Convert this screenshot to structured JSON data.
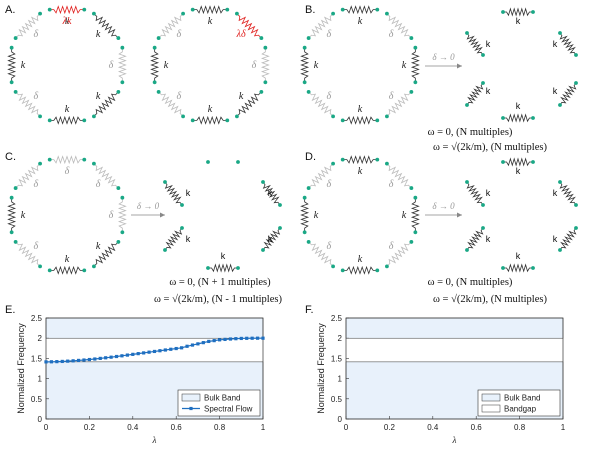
{
  "panels": {
    "A": {
      "label": "A."
    },
    "B": {
      "label": "B."
    },
    "C": {
      "label": "C."
    },
    "D": {
      "label": "D."
    },
    "E": {
      "label": "E."
    },
    "F": {
      "label": "F."
    }
  },
  "symbols": {
    "k": "k",
    "delta": "δ",
    "lambda_k": "λk",
    "lambda_delta": "λδ",
    "K": "k",
    "arrow_label": "δ → 0"
  },
  "notes": {
    "B_zero": "ω = 0,  (N multiples)",
    "B_sqrt": "ω = √(2k/m),  (N multiples)",
    "C_zero": "ω = 0,  (N + 1 multiples)",
    "C_sqrt": "ω = √(2k/m),  (N - 1 multiples)",
    "D_zero": "ω = 0,  (N multiples)",
    "D_sqrt": "ω = √(2k/m),  (N multiples)"
  },
  "colors": {
    "spring_k": "#333333",
    "spring_delta": "#bbbbbb",
    "spring_lambda": "#e0201e",
    "mass": "#1aa886",
    "band_fill": "#e8f1fb",
    "flow": "#1f6fc0",
    "arrow": "#888888"
  },
  "chart_data": [
    {
      "type": "line",
      "panel": "E",
      "xlabel": "λ",
      "ylabel": "Normalized Frequency",
      "xlim": [
        0,
        1
      ],
      "ylim": [
        0,
        2.5
      ],
      "xticks": [
        "0",
        "0.2",
        "0.4",
        "0.6",
        "0.8",
        "1"
      ],
      "yticks": [
        "0",
        "0.5",
        "1",
        "1.5",
        "2",
        "2.5"
      ],
      "bands": [
        [
          0,
          1.414
        ],
        [
          2.0,
          2.5
        ]
      ],
      "series": [
        {
          "name": "Bulk Band",
          "kind": "band"
        },
        {
          "name": "Spectral Flow",
          "kind": "line",
          "x": [
            0,
            0.025,
            0.05,
            0.075,
            0.1,
            0.125,
            0.15,
            0.175,
            0.2,
            0.225,
            0.25,
            0.275,
            0.3,
            0.325,
            0.35,
            0.375,
            0.4,
            0.425,
            0.45,
            0.475,
            0.5,
            0.525,
            0.55,
            0.575,
            0.6,
            0.625,
            0.65,
            0.675,
            0.7,
            0.725,
            0.75,
            0.775,
            0.8,
            0.825,
            0.85,
            0.875,
            0.9,
            0.925,
            0.95,
            0.975,
            1
          ],
          "y": [
            1.414,
            1.416,
            1.42,
            1.425,
            1.432,
            1.44,
            1.45,
            1.46,
            1.472,
            1.485,
            1.5,
            1.515,
            1.53,
            1.547,
            1.564,
            1.582,
            1.6,
            1.618,
            1.636,
            1.654,
            1.672,
            1.69,
            1.708,
            1.726,
            1.744,
            1.762,
            1.8,
            1.83,
            1.86,
            1.89,
            1.92,
            1.94,
            1.96,
            1.97,
            1.98,
            1.988,
            1.994,
            1.997,
            1.999,
            2.0,
            2.0
          ]
        }
      ],
      "legend": "bottom-right"
    },
    {
      "type": "area",
      "panel": "F",
      "xlabel": "λ",
      "ylabel": "Normalized Frequency",
      "xlim": [
        0,
        1
      ],
      "ylim": [
        0,
        2.5
      ],
      "xticks": [
        "0",
        "0.2",
        "0.4",
        "0.6",
        "0.8",
        "1"
      ],
      "yticks": [
        "0",
        "0.5",
        "1",
        "1.5",
        "2",
        "2.5"
      ],
      "bands": [
        [
          0,
          1.414
        ],
        [
          2.0,
          2.5
        ]
      ],
      "gap": [
        1.414,
        2.0
      ],
      "series": [
        {
          "name": "Bulk Band",
          "kind": "band"
        },
        {
          "name": "Bandgap",
          "kind": "gap"
        }
      ],
      "legend": "bottom-right"
    }
  ]
}
